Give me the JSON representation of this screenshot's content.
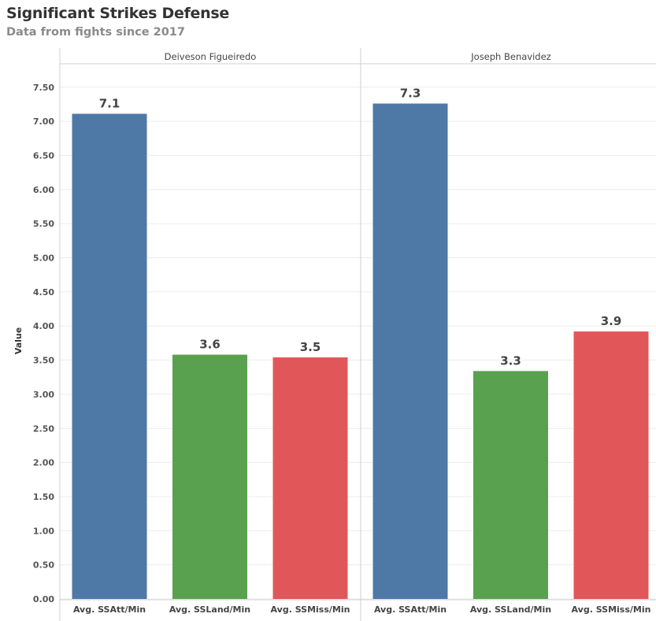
{
  "chart_data": {
    "type": "bar",
    "title": "Significant Strikes Defense",
    "subtitle": "Data from fights since 2017",
    "ylabel": "Value",
    "xlabel": "",
    "ylim": [
      0,
      7.5
    ],
    "yticks": [
      "0.00",
      "0.50",
      "1.00",
      "1.50",
      "2.00",
      "2.50",
      "3.00",
      "3.50",
      "4.00",
      "4.50",
      "5.00",
      "5.50",
      "6.00",
      "6.50",
      "7.00",
      "7.50"
    ],
    "grid": true,
    "categories": [
      "Avg. SSAtt/Min",
      "Avg. SSLand/Min",
      "Avg. SSMiss/Min"
    ],
    "colors": [
      "#4e79a7",
      "#59a14f",
      "#e15759"
    ],
    "panels": [
      {
        "name": "Deiveson Figueiredo",
        "values": [
          7.11,
          3.58,
          3.54
        ],
        "labels": [
          "7.1",
          "3.6",
          "3.5"
        ]
      },
      {
        "name": "Joseph Benavidez",
        "values": [
          7.26,
          3.34,
          3.92
        ],
        "labels": [
          "7.3",
          "3.3",
          "3.9"
        ]
      }
    ]
  }
}
